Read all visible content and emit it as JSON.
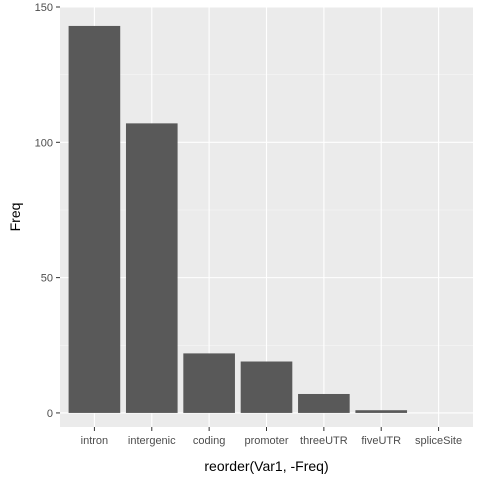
{
  "chart_data": {
    "type": "bar",
    "title": "",
    "xlabel": "reorder(Var1, -Freq)",
    "ylabel": "Freq",
    "categories": [
      "intron",
      "intergenic",
      "coding",
      "promoter",
      "threeUTR",
      "fiveUTR",
      "spliceSite"
    ],
    "values": [
      143,
      107,
      22,
      19,
      7,
      1,
      0
    ],
    "ylim": [
      -5.2,
      150
    ],
    "yticks": [
      0,
      50,
      100,
      150
    ],
    "grid": true,
    "legend": "none"
  },
  "colors": {
    "panel_background": "#ebebeb",
    "grid_major": "#ffffff",
    "grid_minor": "#f5f5f5",
    "bar_fill": "#595959",
    "tick_text": "#4d4d4d",
    "tick_mark": "#333333"
  }
}
